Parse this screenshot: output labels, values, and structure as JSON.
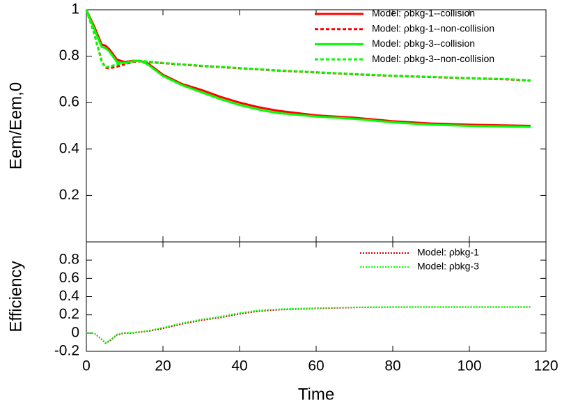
{
  "chart_data": [
    {
      "type": "line",
      "ylabel": "Eem/Eem,0",
      "x": [
        0,
        2,
        4,
        5,
        6,
        8,
        10,
        12,
        14,
        16,
        20,
        25,
        30,
        35,
        40,
        45,
        50,
        60,
        70,
        80,
        90,
        100,
        110,
        116
      ],
      "xlim": [
        0,
        120
      ],
      "ylim": [
        0,
        1
      ],
      "yticks": [
        0.2,
        0.4,
        0.6,
        0.8,
        1
      ],
      "legend": "top-right",
      "series": [
        {
          "name": "Model: ρbkg-1--collision",
          "color": "#ff0000",
          "style": "solid",
          "values": [
            1,
            0.93,
            0.85,
            0.845,
            0.83,
            0.785,
            0.775,
            0.78,
            0.78,
            0.77,
            0.72,
            0.68,
            0.655,
            0.625,
            0.6,
            0.58,
            0.565,
            0.545,
            0.535,
            0.52,
            0.51,
            0.505,
            0.502,
            0.5
          ]
        },
        {
          "name": "Model: ρbkg-1--non-collision",
          "color": "#ff0000",
          "style": "dashed",
          "values": [
            1,
            0.9,
            0.78,
            0.75,
            0.748,
            0.755,
            0.765,
            0.775,
            0.778,
            0.775,
            0.77,
            0.764,
            0.758,
            0.753,
            0.748,
            0.743,
            0.738,
            0.73,
            0.722,
            0.715,
            0.71,
            0.705,
            0.7,
            0.695
          ]
        },
        {
          "name": "Model: ρbkg-3--collision",
          "color": "#00ff00",
          "style": "solid",
          "values": [
            1,
            0.92,
            0.84,
            0.835,
            0.82,
            0.775,
            0.77,
            0.778,
            0.78,
            0.765,
            0.715,
            0.675,
            0.645,
            0.615,
            0.59,
            0.57,
            0.555,
            0.54,
            0.53,
            0.515,
            0.505,
            0.5,
            0.497,
            0.495
          ]
        },
        {
          "name": "Model: ρbkg-3--non-collision",
          "color": "#00ff00",
          "style": "dashed",
          "values": [
            1,
            0.9,
            0.775,
            0.752,
            0.755,
            0.765,
            0.772,
            0.778,
            0.78,
            0.777,
            0.771,
            0.765,
            0.759,
            0.754,
            0.749,
            0.744,
            0.739,
            0.731,
            0.723,
            0.716,
            0.711,
            0.706,
            0.701,
            0.696
          ]
        }
      ]
    },
    {
      "type": "line",
      "ylabel": "Efficiency",
      "xlabel": "Time",
      "x": [
        0,
        2,
        4,
        5,
        6,
        8,
        10,
        12,
        14,
        16,
        20,
        25,
        30,
        35,
        40,
        45,
        50,
        60,
        70,
        80,
        90,
        100,
        110,
        116
      ],
      "xlim": [
        0,
        120
      ],
      "xticks": [
        0,
        20,
        40,
        60,
        80,
        100,
        120
      ],
      "ylim": [
        -0.2,
        1.0
      ],
      "yticks": [
        -0.2,
        0,
        0.2,
        0.4,
        0.6,
        0.8
      ],
      "legend": "top-right",
      "series": [
        {
          "name": "Model: ρbkg-1",
          "color": "#cc0000",
          "style": "dotted",
          "values": [
            0,
            0,
            -0.07,
            -0.11,
            -0.09,
            -0.02,
            0,
            0,
            0.01,
            0.02,
            0.05,
            0.1,
            0.14,
            0.17,
            0.21,
            0.24,
            0.255,
            0.27,
            0.28,
            0.285,
            0.285,
            0.285,
            0.285,
            0.285
          ]
        },
        {
          "name": "Model: ρbkg-3",
          "color": "#00ff00",
          "style": "dotted",
          "values": [
            0,
            0,
            -0.065,
            -0.105,
            -0.085,
            -0.015,
            0.005,
            0.005,
            0.015,
            0.025,
            0.06,
            0.11,
            0.15,
            0.18,
            0.22,
            0.25,
            0.262,
            0.275,
            0.283,
            0.287,
            0.287,
            0.287,
            0.287,
            0.287
          ]
        }
      ]
    }
  ]
}
